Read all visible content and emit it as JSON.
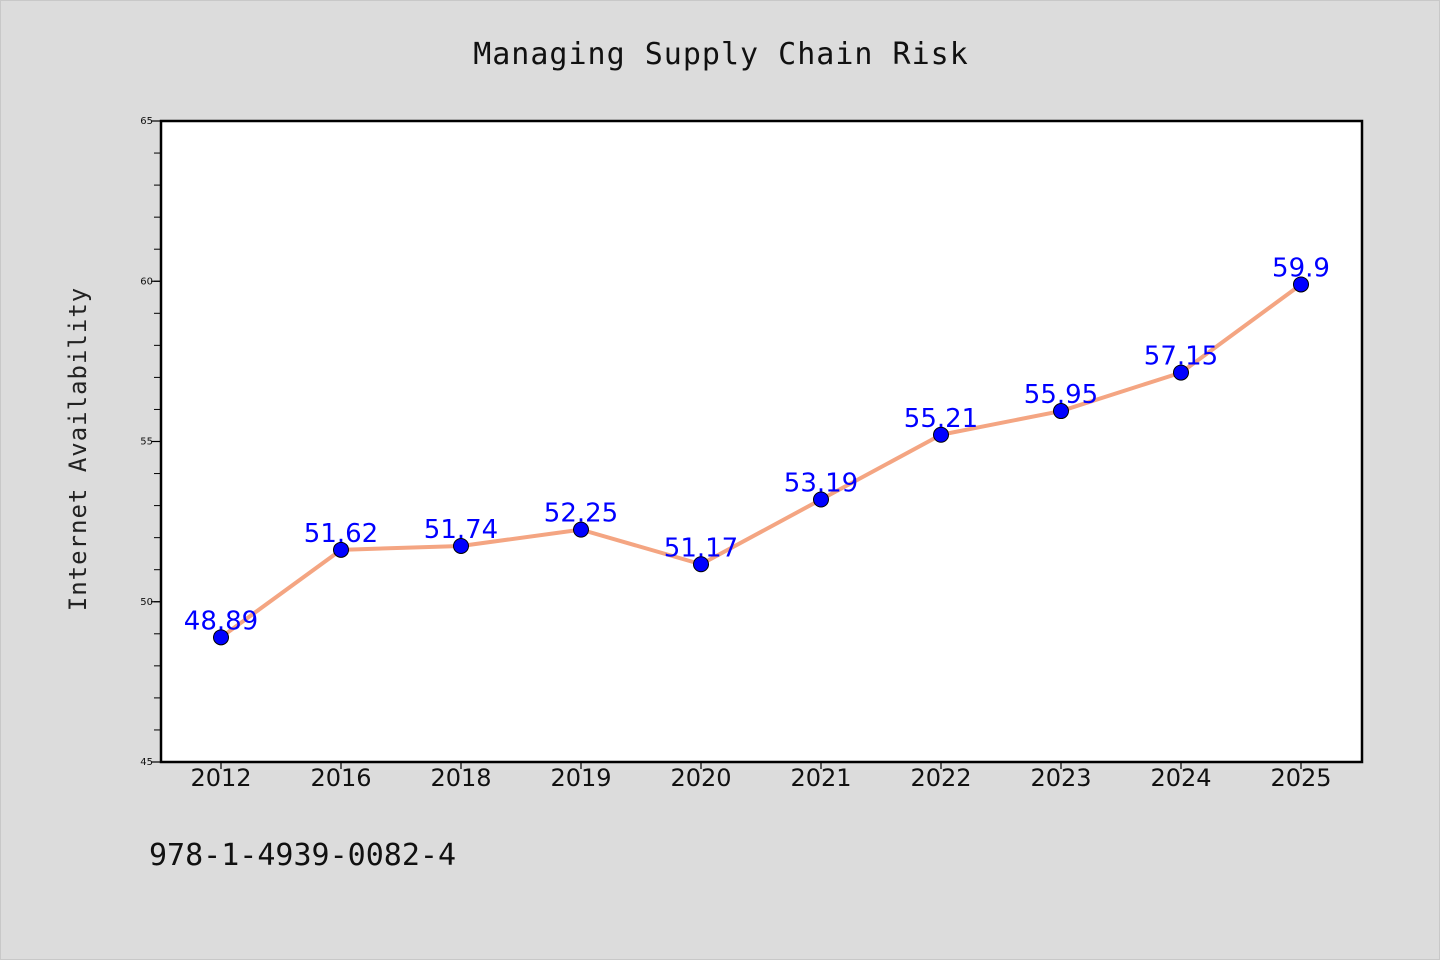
{
  "chart_data": {
    "type": "line",
    "title": "Managing Supply Chain Risk",
    "xlabel": "",
    "ylabel": "Internet Availability",
    "categories": [
      "2012",
      "2016",
      "2018",
      "2019",
      "2020",
      "2021",
      "2022",
      "2023",
      "2024",
      "2025"
    ],
    "series": [
      {
        "values": [
          48.89,
          51.62,
          51.74,
          52.25,
          51.17,
          53.19,
          55.21,
          55.95,
          57.15,
          59.9
        ],
        "labels": [
          "48.89",
          "51.62",
          "51.74",
          "52.25",
          "51.17",
          "53.19",
          "55.21",
          "55.95",
          "57.15",
          "59.9"
        ],
        "line_color": "#f4a582",
        "marker_color": "#0000ff"
      }
    ],
    "ylim": [
      45,
      65
    ],
    "yticks": [
      45,
      50,
      55,
      60,
      65
    ],
    "ytick_labels": [
      "45",
      "50",
      "55",
      "60",
      "65"
    ],
    "grid": false,
    "legend": "none"
  },
  "footer": {
    "isbn": "978-1-4939-0082-4"
  },
  "colors": {
    "background": "#dcdcdc",
    "plot_background": "#ffffff",
    "data_label": "#0000ff"
  }
}
